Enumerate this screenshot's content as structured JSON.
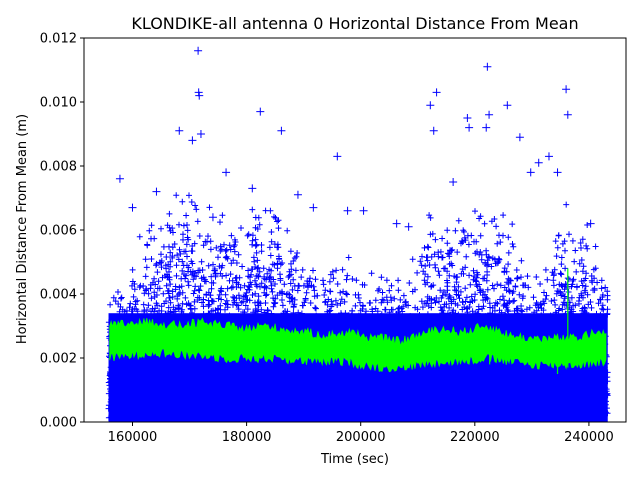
{
  "chart_data": {
    "type": "scatter",
    "title": "KLONDIKE-all antenna 0 Horizontal Distance From Mean",
    "xlabel": "Time (sec)",
    "ylabel": "Horizontal Distance From Mean (m)",
    "xlim": [
      151500,
      246500
    ],
    "ylim": [
      0,
      0.012
    ],
    "xticks": [
      160000,
      180000,
      200000,
      220000,
      240000
    ],
    "xtick_labels": [
      "160000",
      "180000",
      "200000",
      "220000",
      "240000"
    ],
    "yticks": [
      0.0,
      0.002,
      0.004,
      0.006,
      0.008,
      0.01,
      0.012
    ],
    "ytick_labels": [
      "0.000",
      "0.002",
      "0.004",
      "0.006",
      "0.008",
      "0.010",
      "0.012"
    ],
    "grid": false,
    "colors": {
      "points": "#0000ff",
      "band": "#00ff00"
    },
    "series": [
      {
        "marker": "+",
        "color": "#0000ff",
        "x_range": [
          155800,
          243300
        ],
        "outliers": [
          [
            171400,
            0.0122
          ],
          [
            171500,
            0.0116
          ],
          [
            171600,
            0.0103
          ],
          [
            171700,
            0.0102
          ],
          [
            168200,
            0.0091
          ],
          [
            170500,
            0.0088
          ],
          [
            172000,
            0.009
          ],
          [
            182400,
            0.0097
          ],
          [
            186100,
            0.0091
          ],
          [
            195900,
            0.0083
          ],
          [
            212200,
            0.0099
          ],
          [
            213300,
            0.0103
          ],
          [
            218700,
            0.0095
          ],
          [
            222200,
            0.0111
          ],
          [
            222500,
            0.0096
          ],
          [
            225700,
            0.0099
          ],
          [
            236000,
            0.0104
          ],
          [
            236300,
            0.0096
          ],
          [
            212800,
            0.0091
          ],
          [
            219000,
            0.0092
          ],
          [
            222000,
            0.0092
          ],
          [
            227900,
            0.0089
          ],
          [
            233000,
            0.0083
          ],
          [
            231200,
            0.0081
          ],
          [
            164200,
            0.0072
          ],
          [
            176400,
            0.0078
          ],
          [
            189000,
            0.0071
          ],
          [
            200500,
            0.0066
          ],
          [
            157800,
            0.0076
          ],
          [
            181000,
            0.0073
          ],
          [
            191700,
            0.0067
          ],
          [
            197700,
            0.0066
          ],
          [
            206300,
            0.0062
          ],
          [
            208400,
            0.0061
          ],
          [
            229800,
            0.0078
          ],
          [
            234500,
            0.0078
          ],
          [
            240300,
            0.0062
          ],
          [
            160000,
            0.0067
          ],
          [
            216200,
            0.0075
          ],
          [
            174100,
            0.0064
          ]
        ]
      },
      {
        "marker": "line",
        "color": "#00ff00",
        "x": [
          156000,
          160000,
          164000,
          168000,
          172000,
          176000,
          180000,
          183000,
          186000,
          190000,
          194000,
          198000,
          200000,
          204000,
          207000,
          210000,
          214000,
          218000,
          222000,
          226000,
          230000,
          234000,
          238000,
          243000
        ],
        "upper": [
          0.003,
          0.0031,
          0.0031,
          0.003,
          0.0031,
          0.003,
          0.0029,
          0.003,
          0.0029,
          0.0028,
          0.0027,
          0.0028,
          0.0027,
          0.0026,
          0.0025,
          0.0027,
          0.0029,
          0.0028,
          0.003,
          0.0027,
          0.0026,
          0.0026,
          0.0026,
          0.0029
        ],
        "lower": [
          0.002,
          0.0021,
          0.0022,
          0.0021,
          0.0021,
          0.002,
          0.002,
          0.002,
          0.002,
          0.0019,
          0.0019,
          0.0019,
          0.0018,
          0.0017,
          0.0017,
          0.0018,
          0.0019,
          0.0019,
          0.002,
          0.0019,
          0.0018,
          0.0018,
          0.0018,
          0.0019
        ]
      }
    ]
  }
}
